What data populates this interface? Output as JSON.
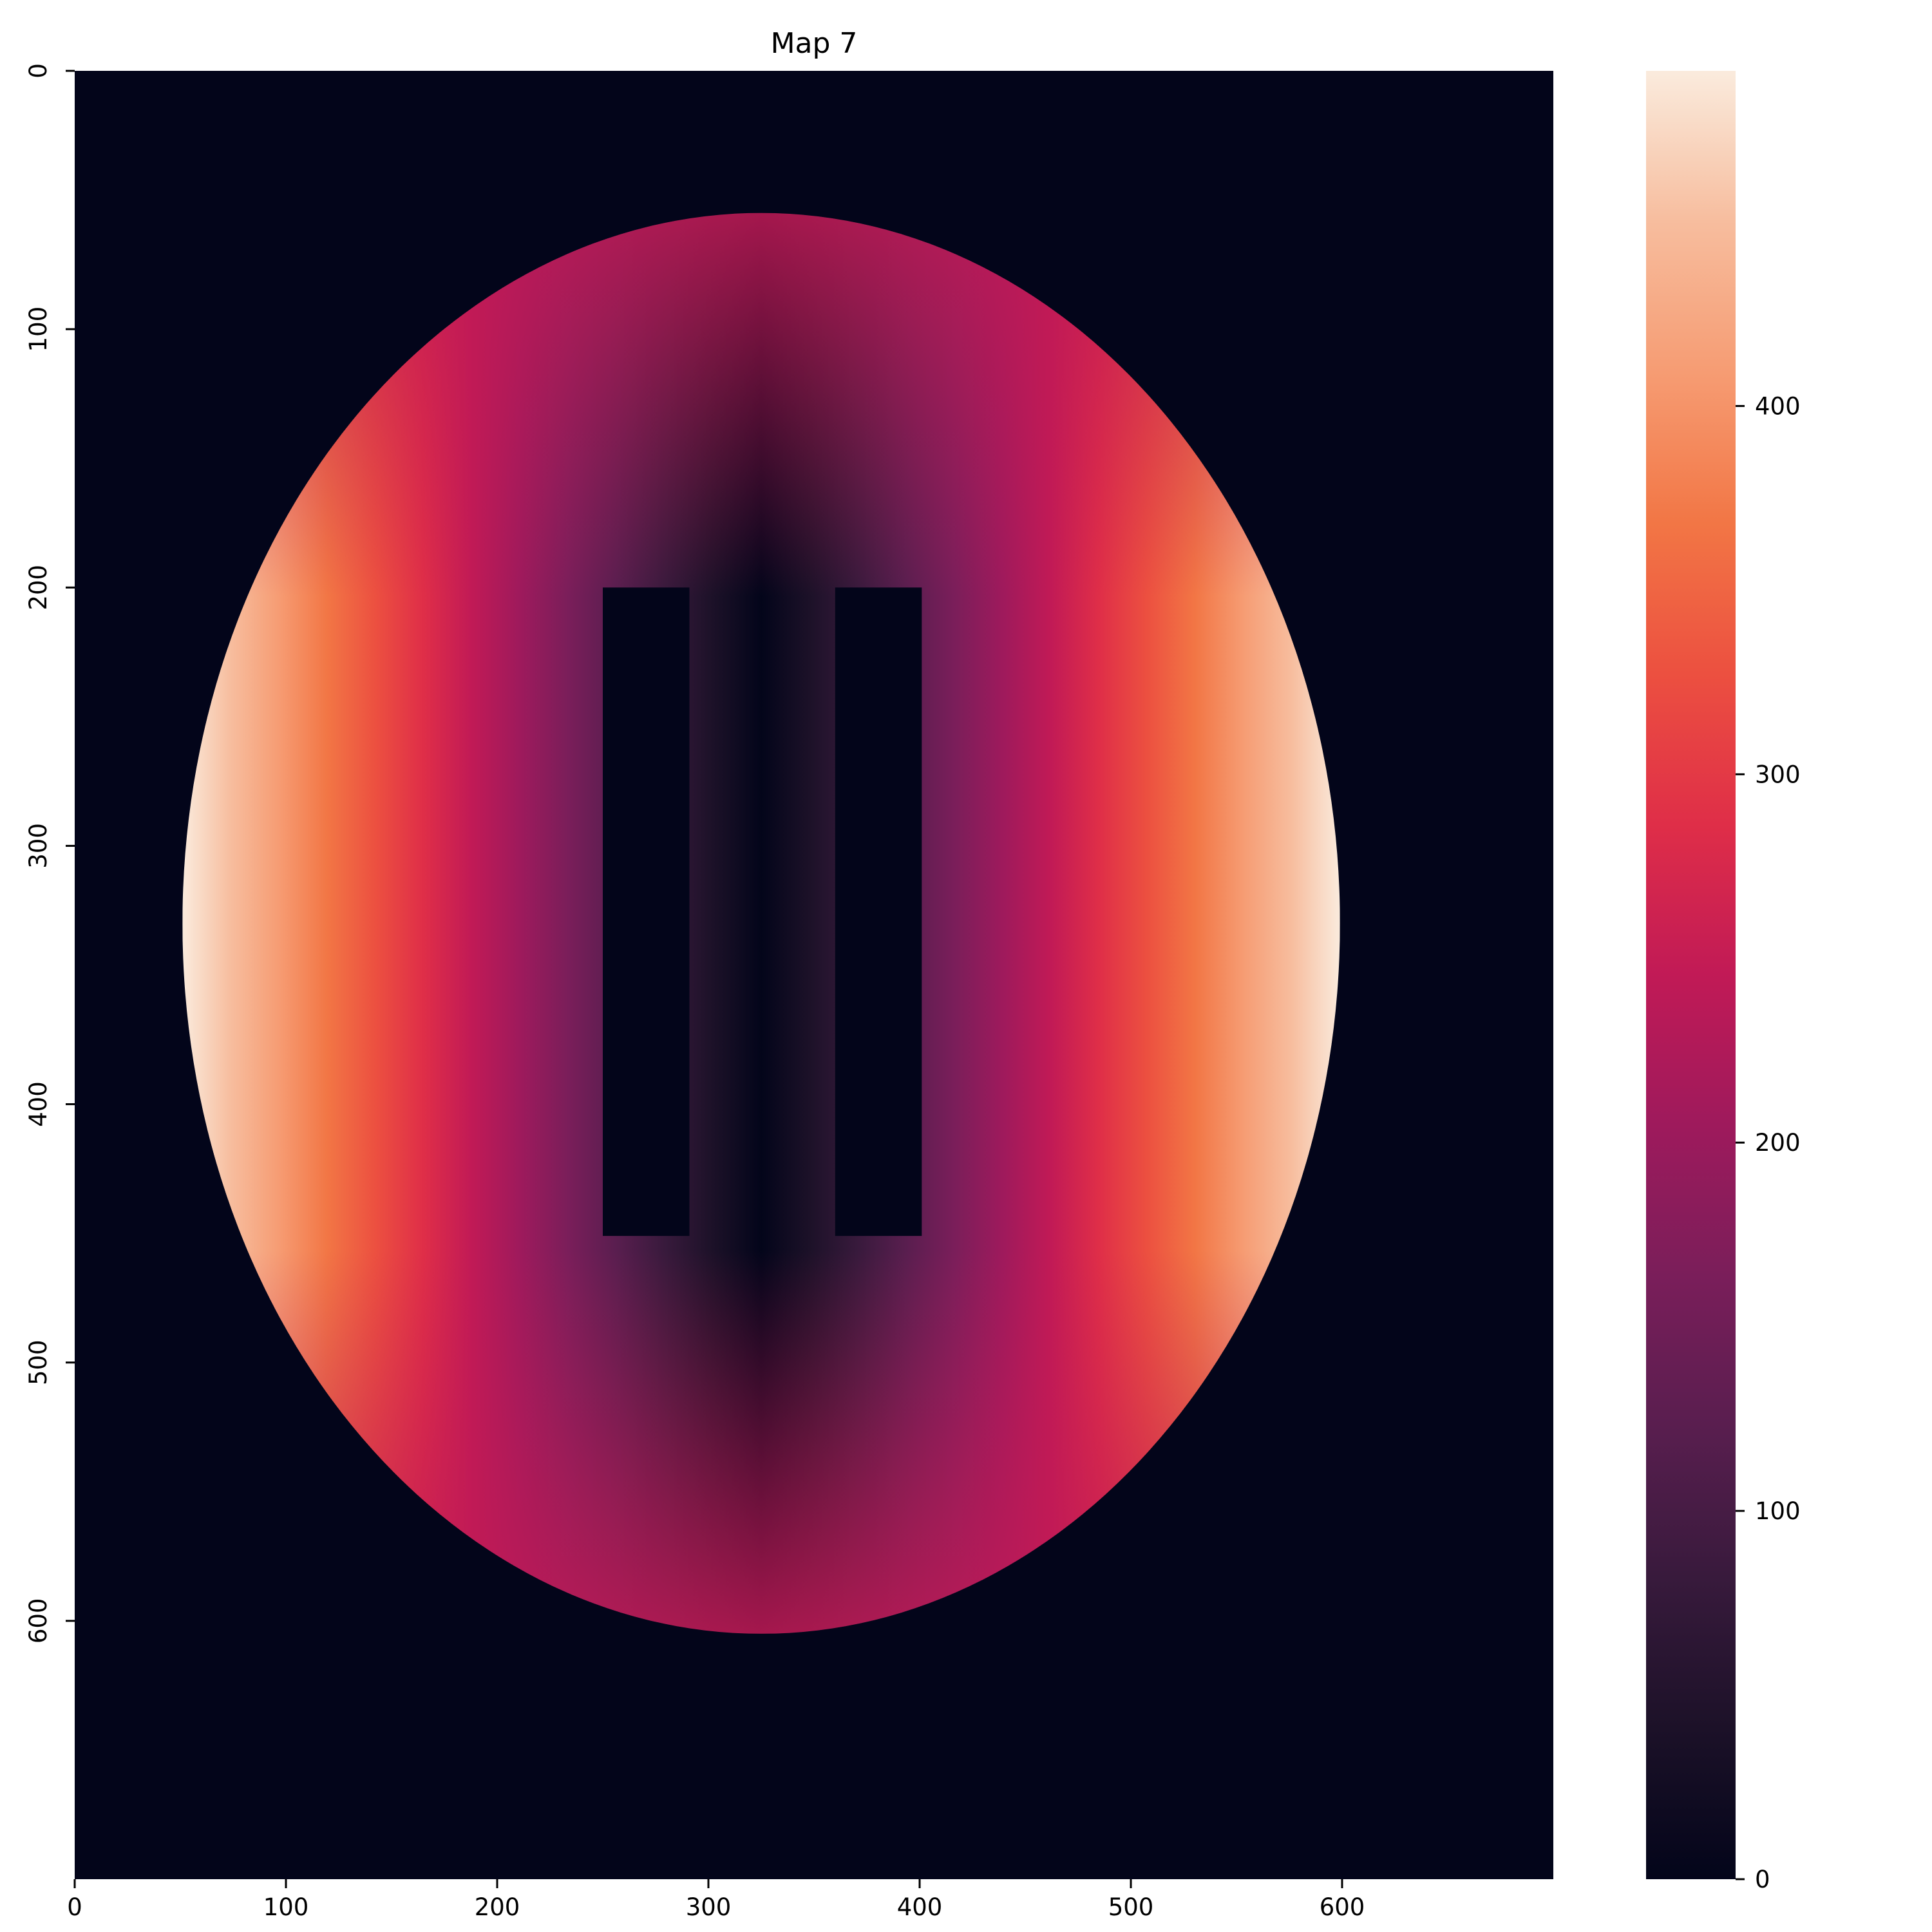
{
  "chart_data": {
    "type": "heatmap",
    "title": "Map 7",
    "xlabel": "",
    "ylabel": "",
    "xlim": [
      0,
      700
    ],
    "ylim": [
      700,
      0
    ],
    "grid": false,
    "x_ticks": [
      {
        "value": 0,
        "label": "0"
      },
      {
        "value": 100,
        "label": "100"
      },
      {
        "value": 200,
        "label": "200"
      },
      {
        "value": 300,
        "label": "300"
      },
      {
        "value": 400,
        "label": "400"
      },
      {
        "value": 500,
        "label": "500"
      },
      {
        "value": 600,
        "label": "600"
      }
    ],
    "y_ticks": [
      {
        "value": 0,
        "label": "0"
      },
      {
        "value": 100,
        "label": "100"
      },
      {
        "value": 200,
        "label": "200"
      },
      {
        "value": 300,
        "label": "300"
      },
      {
        "value": 400,
        "label": "400"
      },
      {
        "value": 500,
        "label": "500"
      },
      {
        "value": 600,
        "label": "600"
      }
    ],
    "colormap": "rocket",
    "colorbar": {
      "range": [
        0,
        491
      ],
      "ticks": [
        {
          "value": 0,
          "label": "0"
        },
        {
          "value": 100,
          "label": "100"
        },
        {
          "value": 200,
          "label": "200"
        },
        {
          "value": 300,
          "label": "300"
        },
        {
          "value": 400,
          "label": "400"
        }
      ],
      "stops": [
        "#03051a",
        "#1c1128",
        "#381a3c",
        "#591e4f",
        "#7a1e5a",
        "#9e1a5c",
        "#c11a56",
        "#df2e48",
        "#ec5040",
        "#f27645",
        "#f69c73",
        "#f7bd9e",
        "#faebdd"
      ]
    },
    "field": {
      "description_values": "distance-based field inside ellipse, zero outside",
      "ellipse_center": [
        325,
        330
      ],
      "ellipse_semi_axes": [
        274,
        275
      ],
      "value_at_ellipse_left_right_edge": 491,
      "value_at_ellipse_top": 250,
      "value_at_ellipse_bottom": 260,
      "value_at_center": 0,
      "zero_blocks": [
        {
          "x": [
            250,
            291
          ],
          "y": [
            200,
            451
          ]
        },
        {
          "x": [
            360,
            401
          ],
          "y": [
            200,
            451
          ]
        }
      ]
    }
  }
}
